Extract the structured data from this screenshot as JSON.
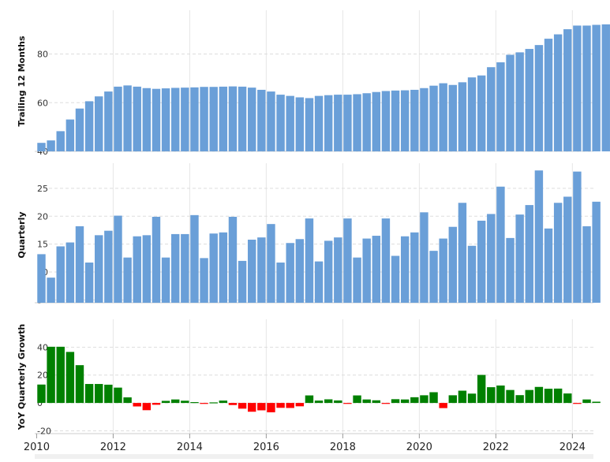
{
  "chart_data": [
    {
      "type": "bar",
      "ylabel": "Trailing 12 Months",
      "yticks": [
        40,
        60,
        80
      ],
      "ylim": [
        40,
        98
      ],
      "color": "#6a9fd8",
      "grid": true,
      "x_start": 2010.0,
      "x_step": 0.25,
      "values": [
        43.5,
        44.5,
        48.3,
        53.1,
        57.6,
        60.6,
        62.6,
        64.6,
        66.6,
        67.1,
        66.6,
        66.0,
        65.7,
        65.9,
        66.1,
        66.2,
        66.3,
        66.5,
        66.5,
        66.6,
        66.7,
        66.6,
        66.2,
        65.3,
        64.6,
        63.3,
        62.8,
        62.2,
        61.9,
        62.8,
        63.1,
        63.3,
        63.3,
        63.5,
        63.9,
        64.4,
        64.8,
        65.0,
        65.1,
        65.3,
        66.0,
        67.0,
        68.0,
        67.3,
        68.4,
        70.4,
        71.2,
        74.6,
        76.6,
        79.7,
        80.7,
        82.1,
        83.7,
        86.3,
        88.1,
        90.2,
        91.7,
        91.7,
        92.0,
        92.2,
        92.2
      ]
    },
    {
      "type": "bar",
      "ylabel": "Quarterly",
      "yticks": [
        5,
        10,
        15,
        20,
        25
      ],
      "ylim": [
        4.5,
        29.5
      ],
      "color": "#6a9fd8",
      "grid": true,
      "x_start": 2010.0,
      "x_step": 0.25,
      "values": [
        13.2,
        9.0,
        14.6,
        15.3,
        18.2,
        11.7,
        16.6,
        17.4,
        20.1,
        12.6,
        16.4,
        16.6,
        19.9,
        12.6,
        16.8,
        16.8,
        20.2,
        12.5,
        16.9,
        17.1,
        19.9,
        12.0,
        15.8,
        16.2,
        18.6,
        11.7,
        15.2,
        15.9,
        19.6,
        11.9,
        15.6,
        16.2,
        19.6,
        12.6,
        16.0,
        16.5,
        19.6,
        12.9,
        16.4,
        17.1,
        20.7,
        13.8,
        16.0,
        18.1,
        22.4,
        14.7,
        19.2,
        20.4,
        25.3,
        16.1,
        20.3,
        22.0,
        28.2,
        17.8,
        22.4,
        23.5,
        28.0,
        18.2,
        22.6
      ]
    },
    {
      "type": "bar",
      "ylabel": "YoY Quarterly Growth",
      "yticks": [
        -20,
        0,
        20,
        40
      ],
      "ylim": [
        -22,
        60
      ],
      "positive_color": "#008000",
      "negative_color": "#ff0000",
      "grid": true,
      "x_start": 2010.0,
      "x_step": 0.25,
      "values": [
        13.2,
        40.3,
        40.3,
        36.6,
        27.1,
        13.6,
        13.6,
        13.1,
        11.0,
        4.0,
        -2.5,
        -5.2,
        -1.3,
        1.5,
        2.5,
        1.6,
        0.6,
        -0.4,
        0.4,
        1.7,
        -1.5,
        -4.1,
        -6.3,
        -5.3,
        -6.7,
        -3.5,
        -3.6,
        -2.4,
        5.4,
        1.7,
        2.6,
        1.8,
        -0.1,
        5.4,
        2.5,
        1.9,
        -0.6,
        2.7,
        2.5,
        4.1,
        5.5,
        7.7,
        -3.7,
        5.5,
        8.8,
        6.7,
        20.1,
        11.3,
        12.5,
        9.3,
        5.6,
        9.3,
        11.5,
        10.2,
        10.3,
        6.8,
        -0.6,
        2.5,
        0.9
      ]
    }
  ],
  "x_axis": {
    "labels": [
      "2010",
      "2012",
      "2014",
      "2016",
      "2018",
      "2020",
      "2022",
      "2024"
    ],
    "label_years": [
      2010,
      2012,
      2014,
      2016,
      2018,
      2020,
      2022,
      2024
    ]
  },
  "panels": [
    {
      "ylabel": "Trailing 12 Months"
    },
    {
      "ylabel": "Quarterly"
    },
    {
      "ylabel": "YoY Quarterly Growth"
    }
  ]
}
